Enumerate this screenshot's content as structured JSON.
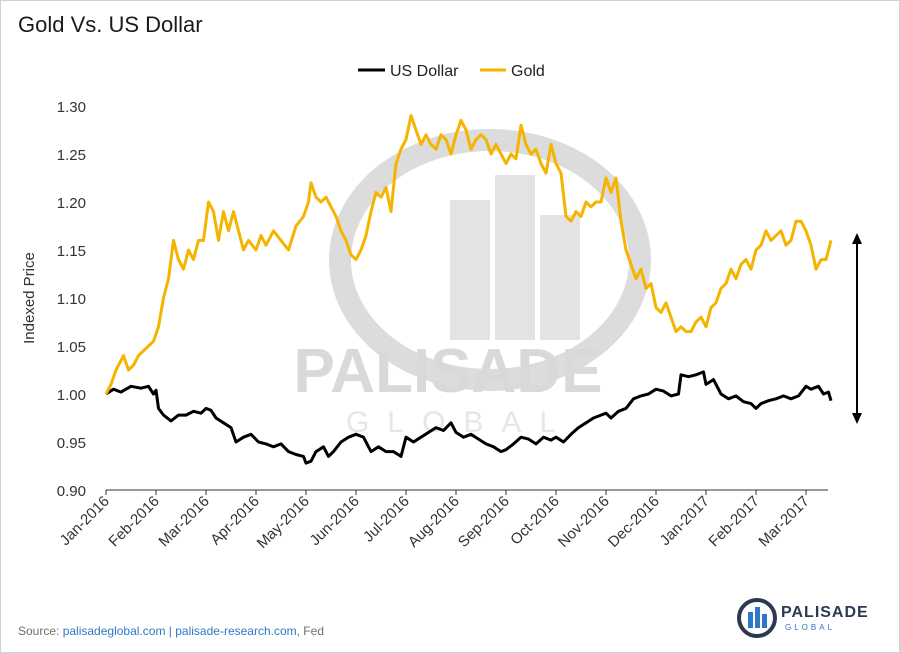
{
  "title": "Gold Vs. US Dollar",
  "footer": {
    "prefix": "Source:",
    "link1": "palisadeglobal.com",
    "sep": "|",
    "link2": "palisade-research.com",
    "suffix": ", Fed"
  },
  "watermark": {
    "word": "PALISADE",
    "sub": "GLOBAL"
  },
  "brand": {
    "name": "PALISADE",
    "sub": "GLOBAL"
  },
  "colors": {
    "usd": "#000000",
    "gold": "#f5b400",
    "watermark": "#d9d9d9",
    "brand_blue": "#2e78c7"
  },
  "chart_data": {
    "type": "line",
    "ylabel": "Indexed Price",
    "ylim": [
      0.9,
      1.3
    ],
    "yticks": [
      "0.90",
      "0.95",
      "1.00",
      "1.05",
      "1.10",
      "1.15",
      "1.20",
      "1.25",
      "1.30"
    ],
    "xticks": [
      "Jan-2016",
      "Feb-2016",
      "Mar-2016",
      "Apr-2016",
      "May-2016",
      "Jun-2016",
      "Jul-2016",
      "Aug-2016",
      "Sep-2016",
      "Oct-2016",
      "Nov-2016",
      "Dec-2016",
      "Jan-2017",
      "Feb-2017",
      "Mar-2017"
    ],
    "xrange": [
      0,
      14.55
    ],
    "legend_position": "top-center",
    "series": [
      {
        "name": "US Dollar",
        "color": "#000000",
        "points": [
          [
            0,
            1.0
          ],
          [
            0.15,
            1.005
          ],
          [
            0.3,
            1.002
          ],
          [
            0.5,
            1.008
          ],
          [
            0.7,
            1.006
          ],
          [
            0.85,
            1.008
          ],
          [
            0.95,
            1.0
          ],
          [
            1.0,
            1.004
          ],
          [
            1.05,
            0.985
          ],
          [
            1.15,
            0.978
          ],
          [
            1.3,
            0.972
          ],
          [
            1.45,
            0.978
          ],
          [
            1.6,
            0.978
          ],
          [
            1.75,
            0.982
          ],
          [
            1.9,
            0.98
          ],
          [
            2.0,
            0.985
          ],
          [
            2.1,
            0.983
          ],
          [
            2.2,
            0.975
          ],
          [
            2.35,
            0.97
          ],
          [
            2.5,
            0.965
          ],
          [
            2.6,
            0.95
          ],
          [
            2.75,
            0.955
          ],
          [
            2.9,
            0.958
          ],
          [
            3.05,
            0.95
          ],
          [
            3.2,
            0.948
          ],
          [
            3.35,
            0.945
          ],
          [
            3.5,
            0.948
          ],
          [
            3.65,
            0.94
          ],
          [
            3.8,
            0.937
          ],
          [
            3.95,
            0.935
          ],
          [
            4.0,
            0.928
          ],
          [
            4.1,
            0.93
          ],
          [
            4.2,
            0.94
          ],
          [
            4.35,
            0.945
          ],
          [
            4.45,
            0.935
          ],
          [
            4.55,
            0.94
          ],
          [
            4.7,
            0.95
          ],
          [
            4.85,
            0.955
          ],
          [
            5.0,
            0.958
          ],
          [
            5.15,
            0.955
          ],
          [
            5.3,
            0.94
          ],
          [
            5.45,
            0.945
          ],
          [
            5.6,
            0.94
          ],
          [
            5.75,
            0.94
          ],
          [
            5.9,
            0.935
          ],
          [
            6.0,
            0.955
          ],
          [
            6.15,
            0.95
          ],
          [
            6.3,
            0.955
          ],
          [
            6.45,
            0.96
          ],
          [
            6.6,
            0.965
          ],
          [
            6.75,
            0.962
          ],
          [
            6.9,
            0.97
          ],
          [
            7.0,
            0.96
          ],
          [
            7.15,
            0.955
          ],
          [
            7.3,
            0.958
          ],
          [
            7.45,
            0.953
          ],
          [
            7.6,
            0.948
          ],
          [
            7.75,
            0.945
          ],
          [
            7.9,
            0.94
          ],
          [
            8.0,
            0.942
          ],
          [
            8.15,
            0.948
          ],
          [
            8.3,
            0.955
          ],
          [
            8.45,
            0.953
          ],
          [
            8.6,
            0.948
          ],
          [
            8.75,
            0.955
          ],
          [
            8.9,
            0.952
          ],
          [
            9.0,
            0.955
          ],
          [
            9.15,
            0.95
          ],
          [
            9.3,
            0.958
          ],
          [
            9.45,
            0.965
          ],
          [
            9.6,
            0.97
          ],
          [
            9.75,
            0.975
          ],
          [
            9.9,
            0.978
          ],
          [
            10.0,
            0.98
          ],
          [
            10.1,
            0.975
          ],
          [
            10.25,
            0.982
          ],
          [
            10.4,
            0.985
          ],
          [
            10.55,
            0.995
          ],
          [
            10.7,
            0.998
          ],
          [
            10.85,
            1.0
          ],
          [
            11.0,
            1.005
          ],
          [
            11.15,
            1.003
          ],
          [
            11.3,
            0.998
          ],
          [
            11.45,
            1.0
          ],
          [
            11.5,
            1.02
          ],
          [
            11.65,
            1.018
          ],
          [
            11.8,
            1.02
          ],
          [
            11.95,
            1.023
          ],
          [
            12.0,
            1.01
          ],
          [
            12.15,
            1.015
          ],
          [
            12.3,
            1.0
          ],
          [
            12.45,
            0.995
          ],
          [
            12.6,
            0.998
          ],
          [
            12.75,
            0.992
          ],
          [
            12.9,
            0.99
          ],
          [
            13.0,
            0.985
          ],
          [
            13.1,
            0.99
          ],
          [
            13.25,
            0.993
          ],
          [
            13.4,
            0.995
          ],
          [
            13.55,
            0.998
          ],
          [
            13.7,
            0.995
          ],
          [
            13.85,
            0.998
          ],
          [
            14.0,
            1.008
          ],
          [
            14.1,
            1.005
          ],
          [
            14.25,
            1.008
          ],
          [
            14.35,
            1.0
          ],
          [
            14.45,
            1.002
          ],
          [
            14.5,
            0.993
          ]
        ]
      },
      {
        "name": "Gold",
        "color": "#f5b400",
        "points": [
          [
            0,
            1.0
          ],
          [
            0.1,
            1.01
          ],
          [
            0.2,
            1.025
          ],
          [
            0.3,
            1.035
          ],
          [
            0.35,
            1.04
          ],
          [
            0.45,
            1.025
          ],
          [
            0.55,
            1.03
          ],
          [
            0.65,
            1.04
          ],
          [
            0.75,
            1.045
          ],
          [
            0.85,
            1.05
          ],
          [
            0.95,
            1.055
          ],
          [
            1.05,
            1.07
          ],
          [
            1.15,
            1.1
          ],
          [
            1.25,
            1.12
          ],
          [
            1.35,
            1.16
          ],
          [
            1.45,
            1.14
          ],
          [
            1.55,
            1.13
          ],
          [
            1.65,
            1.15
          ],
          [
            1.75,
            1.14
          ],
          [
            1.85,
            1.16
          ],
          [
            1.95,
            1.16
          ],
          [
            2.05,
            1.2
          ],
          [
            2.15,
            1.19
          ],
          [
            2.25,
            1.16
          ],
          [
            2.35,
            1.19
          ],
          [
            2.45,
            1.17
          ],
          [
            2.55,
            1.19
          ],
          [
            2.65,
            1.17
          ],
          [
            2.75,
            1.15
          ],
          [
            2.85,
            1.16
          ],
          [
            3.0,
            1.15
          ],
          [
            3.1,
            1.165
          ],
          [
            3.2,
            1.155
          ],
          [
            3.35,
            1.17
          ],
          [
            3.5,
            1.16
          ],
          [
            3.65,
            1.15
          ],
          [
            3.8,
            1.175
          ],
          [
            3.95,
            1.185
          ],
          [
            4.05,
            1.2
          ],
          [
            4.1,
            1.22
          ],
          [
            4.2,
            1.205
          ],
          [
            4.3,
            1.2
          ],
          [
            4.4,
            1.205
          ],
          [
            4.5,
            1.195
          ],
          [
            4.6,
            1.185
          ],
          [
            4.7,
            1.17
          ],
          [
            4.8,
            1.16
          ],
          [
            4.9,
            1.145
          ],
          [
            5.0,
            1.14
          ],
          [
            5.1,
            1.15
          ],
          [
            5.2,
            1.165
          ],
          [
            5.3,
            1.19
          ],
          [
            5.4,
            1.21
          ],
          [
            5.5,
            1.205
          ],
          [
            5.6,
            1.215
          ],
          [
            5.7,
            1.19
          ],
          [
            5.8,
            1.24
          ],
          [
            5.9,
            1.255
          ],
          [
            6.0,
            1.265
          ],
          [
            6.1,
            1.29
          ],
          [
            6.2,
            1.275
          ],
          [
            6.3,
            1.26
          ],
          [
            6.4,
            1.27
          ],
          [
            6.5,
            1.26
          ],
          [
            6.6,
            1.255
          ],
          [
            6.7,
            1.27
          ],
          [
            6.8,
            1.265
          ],
          [
            6.9,
            1.25
          ],
          [
            7.0,
            1.27
          ],
          [
            7.1,
            1.285
          ],
          [
            7.2,
            1.275
          ],
          [
            7.3,
            1.255
          ],
          [
            7.4,
            1.265
          ],
          [
            7.5,
            1.27
          ],
          [
            7.6,
            1.265
          ],
          [
            7.7,
            1.25
          ],
          [
            7.8,
            1.26
          ],
          [
            7.9,
            1.25
          ],
          [
            8.0,
            1.24
          ],
          [
            8.1,
            1.25
          ],
          [
            8.2,
            1.245
          ],
          [
            8.3,
            1.28
          ],
          [
            8.4,
            1.26
          ],
          [
            8.5,
            1.25
          ],
          [
            8.6,
            1.255
          ],
          [
            8.7,
            1.24
          ],
          [
            8.8,
            1.23
          ],
          [
            8.9,
            1.26
          ],
          [
            9.0,
            1.24
          ],
          [
            9.1,
            1.23
          ],
          [
            9.2,
            1.185
          ],
          [
            9.3,
            1.18
          ],
          [
            9.4,
            1.19
          ],
          [
            9.5,
            1.185
          ],
          [
            9.6,
            1.2
          ],
          [
            9.7,
            1.195
          ],
          [
            9.8,
            1.2
          ],
          [
            9.9,
            1.2
          ],
          [
            10.0,
            1.225
          ],
          [
            10.1,
            1.21
          ],
          [
            10.2,
            1.225
          ],
          [
            10.3,
            1.18
          ],
          [
            10.4,
            1.15
          ],
          [
            10.5,
            1.135
          ],
          [
            10.6,
            1.12
          ],
          [
            10.7,
            1.13
          ],
          [
            10.8,
            1.11
          ],
          [
            10.9,
            1.115
          ],
          [
            11.0,
            1.09
          ],
          [
            11.1,
            1.085
          ],
          [
            11.2,
            1.095
          ],
          [
            11.3,
            1.08
          ],
          [
            11.4,
            1.065
          ],
          [
            11.5,
            1.07
          ],
          [
            11.6,
            1.065
          ],
          [
            11.7,
            1.065
          ],
          [
            11.8,
            1.075
          ],
          [
            11.9,
            1.08
          ],
          [
            12.0,
            1.07
          ],
          [
            12.1,
            1.09
          ],
          [
            12.2,
            1.095
          ],
          [
            12.3,
            1.11
          ],
          [
            12.4,
            1.115
          ],
          [
            12.5,
            1.13
          ],
          [
            12.6,
            1.12
          ],
          [
            12.7,
            1.135
          ],
          [
            12.8,
            1.14
          ],
          [
            12.9,
            1.13
          ],
          [
            13.0,
            1.15
          ],
          [
            13.1,
            1.155
          ],
          [
            13.2,
            1.17
          ],
          [
            13.3,
            1.16
          ],
          [
            13.4,
            1.165
          ],
          [
            13.5,
            1.17
          ],
          [
            13.6,
            1.155
          ],
          [
            13.7,
            1.16
          ],
          [
            13.8,
            1.18
          ],
          [
            13.9,
            1.18
          ],
          [
            14.0,
            1.17
          ],
          [
            14.1,
            1.155
          ],
          [
            14.2,
            1.13
          ],
          [
            14.3,
            1.14
          ],
          [
            14.4,
            1.14
          ],
          [
            14.5,
            1.16
          ]
        ]
      }
    ]
  }
}
